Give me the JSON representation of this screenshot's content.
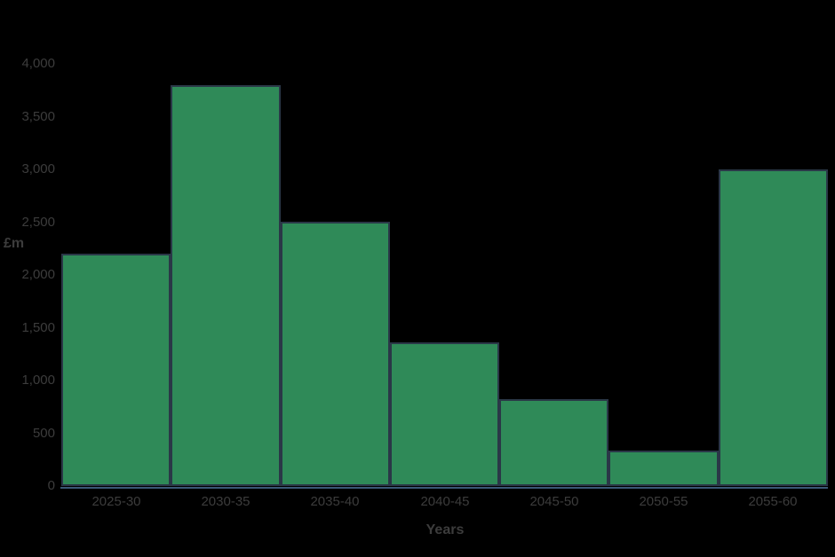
{
  "chart_data": {
    "type": "bar",
    "categories": [
      "2025-30",
      "2030-35",
      "2035-40",
      "2040-45",
      "2045-50",
      "2050-55",
      "2055-60"
    ],
    "values": [
      2200,
      3800,
      2500,
      1360,
      820,
      340,
      3000
    ],
    "title": "",
    "xlabel": "Years",
    "ylabel": "£m",
    "ylim": [
      0,
      4000
    ],
    "yticks": {
      "values": [
        0,
        500,
        1000,
        1500,
        2000,
        2500,
        3000,
        3500,
        4000
      ],
      "labels": [
        "0",
        "500",
        "1,000",
        "1,500",
        "2,000",
        "2,500",
        "3,000",
        "3,500",
        "4,000"
      ]
    },
    "grid": false,
    "legend": null,
    "colors": {
      "bar_fill": "#2f8a58",
      "bar_stroke": "#2a3747",
      "axis_line": "#3b5876",
      "text": "#3c3c3c",
      "background": "#000000"
    }
  }
}
